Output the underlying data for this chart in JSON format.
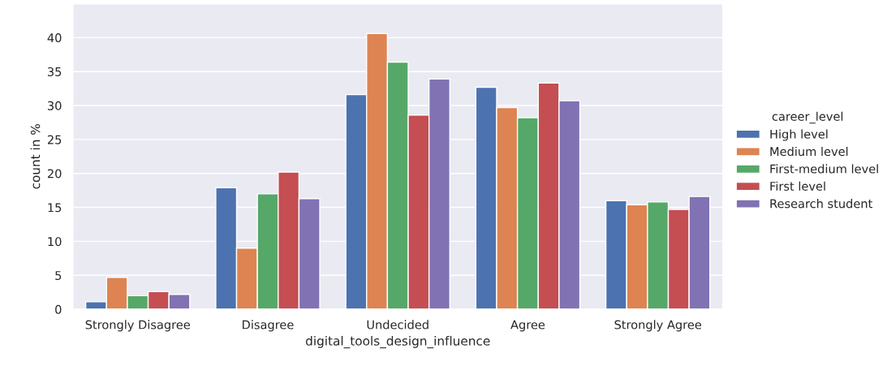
{
  "chart_data": {
    "type": "bar",
    "xlabel": "digital_tools_design_influence",
    "ylabel": "count in %",
    "legend_title": "career_level",
    "categories": [
      "Strongly Disagree",
      "Disagree",
      "Undecided",
      "Agree",
      "Strongly Agree"
    ],
    "series": [
      {
        "name": "High level",
        "color": "#4c72b0",
        "values": [
          1.1,
          17.9,
          31.6,
          32.7,
          16.0
        ]
      },
      {
        "name": "Medium level",
        "color": "#dd8452",
        "values": [
          4.7,
          9.0,
          40.6,
          29.7,
          15.4
        ]
      },
      {
        "name": "First-medium level",
        "color": "#55a868",
        "values": [
          2.0,
          17.0,
          36.4,
          28.2,
          15.8
        ]
      },
      {
        "name": "First level",
        "color": "#c44e52",
        "values": [
          2.6,
          20.2,
          28.6,
          33.3,
          14.7
        ]
      },
      {
        "name": "Research student",
        "color": "#8172b3",
        "values": [
          2.2,
          16.3,
          33.9,
          30.7,
          16.6
        ]
      }
    ],
    "ylim": [
      0,
      45
    ],
    "yticks": [
      0,
      5,
      10,
      15,
      20,
      25,
      30,
      35,
      40
    ],
    "grid": "y",
    "legend": "right"
  }
}
